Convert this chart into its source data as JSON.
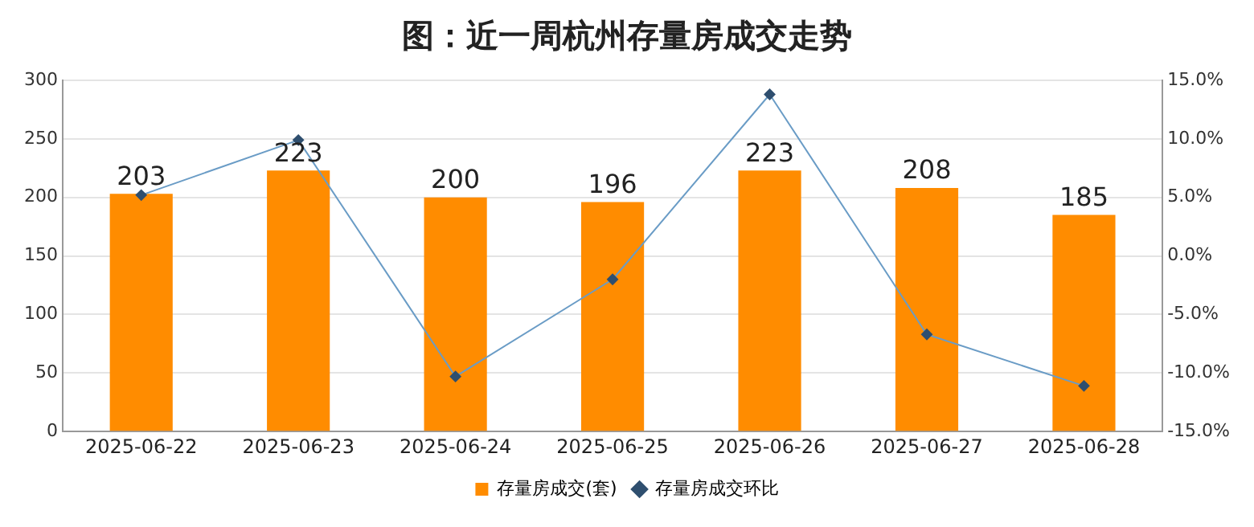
{
  "chart_data": {
    "type": "bar",
    "title": "图：近一周杭州存量房成交走势",
    "categories": [
      "2025-06-22",
      "2025-06-23",
      "2025-06-24",
      "2025-06-25",
      "2025-06-26",
      "2025-06-27",
      "2025-06-28"
    ],
    "series": [
      {
        "name": "存量房成交(套)",
        "color": "#ff8c00",
        "values": [
          203,
          223,
          200,
          196,
          223,
          208,
          185
        ],
        "value_labels": [
          "203",
          "223",
          "200",
          "196",
          "223",
          "208",
          "185"
        ]
      },
      {
        "name": "存量房成交环比",
        "type": "line",
        "axis": "y2",
        "color": "#6a9cc6",
        "marker": "diamond",
        "values": [
          5.2,
          9.9,
          -10.3,
          -2.0,
          13.8,
          -6.7,
          -11.1
        ]
      }
    ],
    "ylim": [
      0,
      300
    ],
    "yticks": [
      0,
      50,
      100,
      150,
      200,
      250,
      300
    ],
    "y2lim": [
      -15,
      15
    ],
    "y2ticks": [
      {
        "value": -15,
        "label": "-15.0%"
      },
      {
        "value": -10,
        "label": "-10.0%"
      },
      {
        "value": -5,
        "label": "-5.0%"
      },
      {
        "value": 0,
        "label": "0.0%"
      },
      {
        "value": 5,
        "label": "5.0%"
      },
      {
        "value": 10,
        "label": "10.0%"
      },
      {
        "value": 15,
        "label": "15.0%"
      }
    ],
    "grid": "y",
    "legend": "bottom"
  }
}
